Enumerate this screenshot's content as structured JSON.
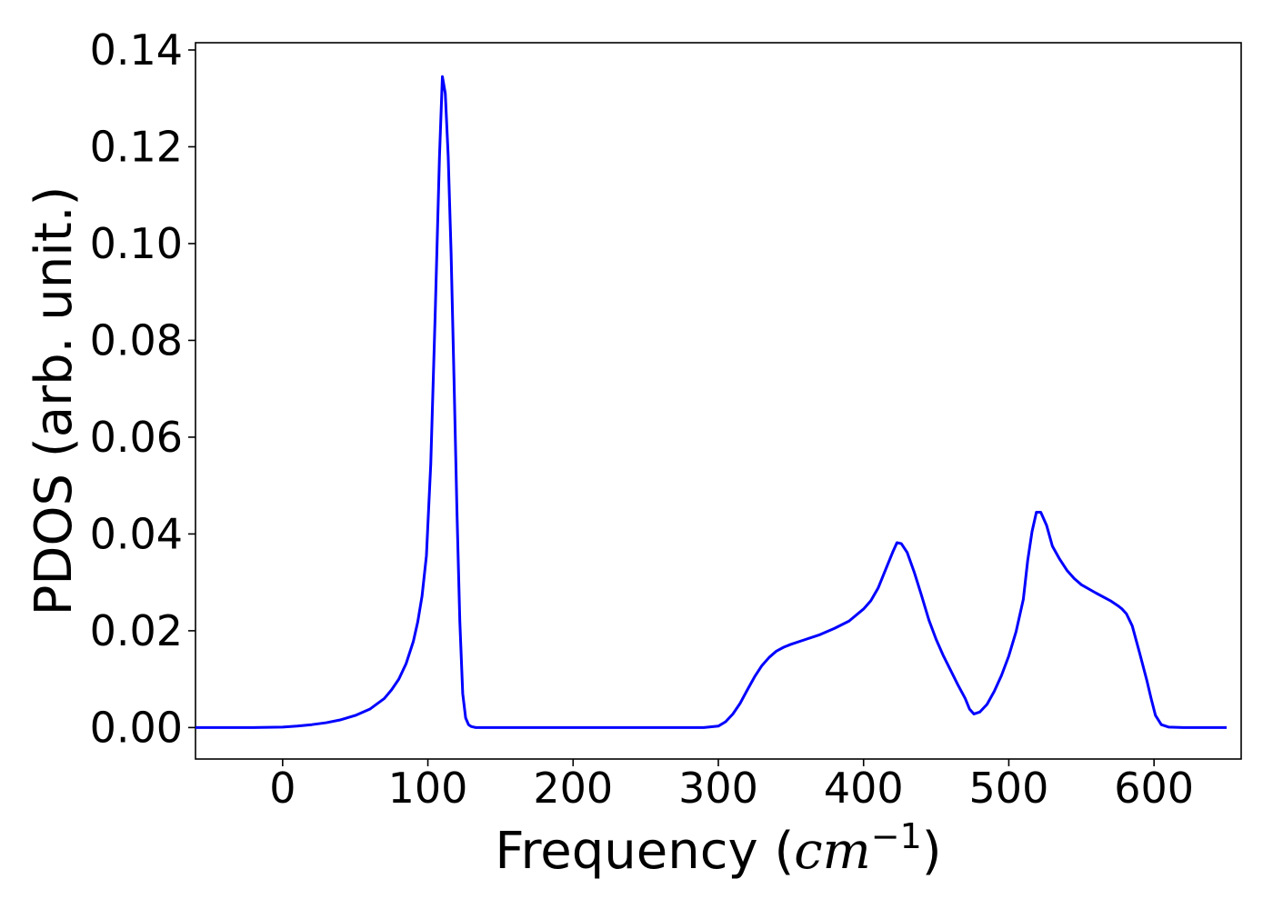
{
  "chart_data": {
    "type": "line",
    "title": "",
    "xlabel": "Frequency (",
    "xlabel_math": "cm",
    "xlabel_sup": "−1",
    "xlabel_close": ")",
    "ylabel": "PDOS (arb. unit.)",
    "xlim": [
      -60,
      660
    ],
    "ylim": [
      -0.0065,
      0.1415
    ],
    "xticks": [
      0,
      100,
      200,
      300,
      400,
      500,
      600
    ],
    "xtick_labels": [
      "0",
      "100",
      "200",
      "300",
      "400",
      "500",
      "600"
    ],
    "yticks": [
      0.0,
      0.02,
      0.04,
      0.06,
      0.08,
      0.1,
      0.12,
      0.14
    ],
    "ytick_labels": [
      "0.00",
      "0.02",
      "0.04",
      "0.06",
      "0.08",
      "0.10",
      "0.12",
      "0.14"
    ],
    "grid": false,
    "series": [
      {
        "color": "#0000ff",
        "x": [
          -60,
          -40,
          -20,
          0,
          10,
          20,
          30,
          40,
          50,
          60,
          70,
          75,
          80,
          85,
          90,
          93,
          96,
          99,
          102,
          105,
          108,
          110,
          112,
          114,
          116,
          118,
          120,
          122,
          124,
          126,
          128,
          130,
          133,
          136,
          140,
          150,
          200,
          250,
          290,
          300,
          305,
          310,
          315,
          320,
          325,
          330,
          335,
          340,
          345,
          350,
          360,
          370,
          380,
          390,
          400,
          405,
          410,
          415,
          420,
          423,
          426,
          430,
          435,
          440,
          445,
          450,
          455,
          460,
          465,
          470,
          473,
          476,
          480,
          485,
          490,
          495,
          500,
          505,
          510,
          513,
          516,
          519,
          522,
          526,
          530,
          535,
          540,
          545,
          550,
          560,
          570,
          575,
          578,
          581,
          585,
          590,
          595,
          598,
          601,
          605,
          610,
          620,
          640,
          650
        ],
        "y": [
          0.0,
          0.0,
          0.0,
          0.0001,
          0.0003,
          0.0006,
          0.001,
          0.0016,
          0.0025,
          0.0038,
          0.006,
          0.0078,
          0.01,
          0.0132,
          0.0178,
          0.0218,
          0.0272,
          0.0355,
          0.0545,
          0.085,
          0.118,
          0.1345,
          0.131,
          0.118,
          0.098,
          0.072,
          0.045,
          0.022,
          0.007,
          0.002,
          0.0006,
          0.0002,
          0.0,
          0.0,
          0.0,
          0.0,
          0.0,
          0.0,
          0.0,
          0.0003,
          0.0012,
          0.0028,
          0.005,
          0.0078,
          0.0105,
          0.0128,
          0.0145,
          0.0158,
          0.0166,
          0.0172,
          0.0182,
          0.0192,
          0.0205,
          0.022,
          0.0245,
          0.0262,
          0.0288,
          0.0325,
          0.0362,
          0.0382,
          0.038,
          0.0362,
          0.032,
          0.0272,
          0.0222,
          0.0182,
          0.0148,
          0.0118,
          0.0088,
          0.006,
          0.0038,
          0.0028,
          0.0032,
          0.0048,
          0.0075,
          0.0108,
          0.0148,
          0.0198,
          0.0265,
          0.0345,
          0.0405,
          0.0445,
          0.0445,
          0.0418,
          0.0375,
          0.0348,
          0.0325,
          0.0308,
          0.0295,
          0.0278,
          0.0262,
          0.0252,
          0.0245,
          0.0235,
          0.021,
          0.0155,
          0.0098,
          0.006,
          0.0025,
          0.0006,
          0.0001,
          0.0,
          0.0,
          0.0
        ]
      }
    ]
  }
}
